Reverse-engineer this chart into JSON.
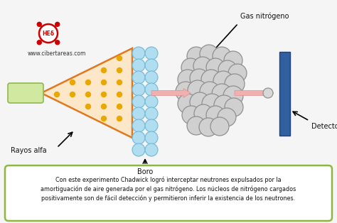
{
  "bg_color": "#f5f5f5",
  "text_box_text": "Con este experimento Chadwick logró interceptar neutrones expulsados por la\namortiguación de aire generada por el gas nitrógeno. Los núcleos de nitrógeno cargados\npositivamente son de fácil detección y permitieron inferir la existencia de los neutrones.",
  "text_box_border": "#8db840",
  "text_box_bg": "#ffffff",
  "label_rayos": "Rayos alfa",
  "label_boro": "Boro",
  "label_gas": "Gas nitrógeno",
  "label_detector": "Detector de núcleos",
  "label_web": "www.cibertareas.com",
  "orange_border": "#e07820",
  "orange_fill": "#fce8c8",
  "dot_color": "#e8a800",
  "source_box_fill": "#d0e8a0",
  "source_box_edge": "#90b850",
  "boron_fill": "#b0ddf0",
  "boron_edge": "#70b8d8",
  "nitrogen_fill": "#d0d0d0",
  "nitrogen_edge": "#909090",
  "detector_fill": "#3060a0",
  "detector_edge": "#204080",
  "arrow_fill": "#f0b0b0",
  "arrow_edge": "#e09090",
  "neutron_fill": "#d8d8d8",
  "neutron_edge": "#909090",
  "logo_edge": "#cc0000",
  "logo_text": "#cc0000"
}
